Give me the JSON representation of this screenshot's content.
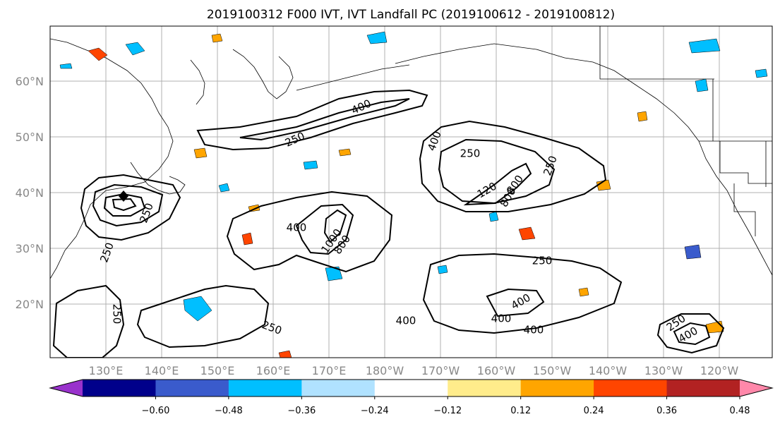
{
  "title": "2019100312 F000 IVT, IVT Landfall PC (2019100612 - 2019100812)",
  "map": {
    "lon_labels": [
      "130°E",
      "140°E",
      "150°E",
      "160°E",
      "170°E",
      "180°W",
      "170°W",
      "160°W",
      "150°W",
      "140°W",
      "130°W",
      "120°W"
    ],
    "lat_labels": [
      "60°N",
      "50°N",
      "40°N",
      "30°N",
      "20°N"
    ],
    "contour_labels": [
      "400",
      "250",
      "250",
      "400",
      "800",
      "400",
      "1000",
      "800",
      "250",
      "400",
      "400",
      "400",
      "400",
      "250",
      "250",
      "250",
      "250",
      "400",
      "250",
      "800",
      "120",
      "250"
    ]
  },
  "colorbar": {
    "colors": [
      "#9932CC",
      "#00008B",
      "#3A5BCC",
      "#00BFFF",
      "#B0E2FF",
      "#FFFFFF",
      "#FFEC8B",
      "#FFA500",
      "#FF4500",
      "#B22222",
      "#FF88AA"
    ],
    "tick_labels": [
      "−0.60",
      "−0.48",
      "−0.36",
      "−0.24",
      "−0.12",
      "0.12",
      "0.24",
      "0.36",
      "0.48",
      "0.60"
    ]
  }
}
